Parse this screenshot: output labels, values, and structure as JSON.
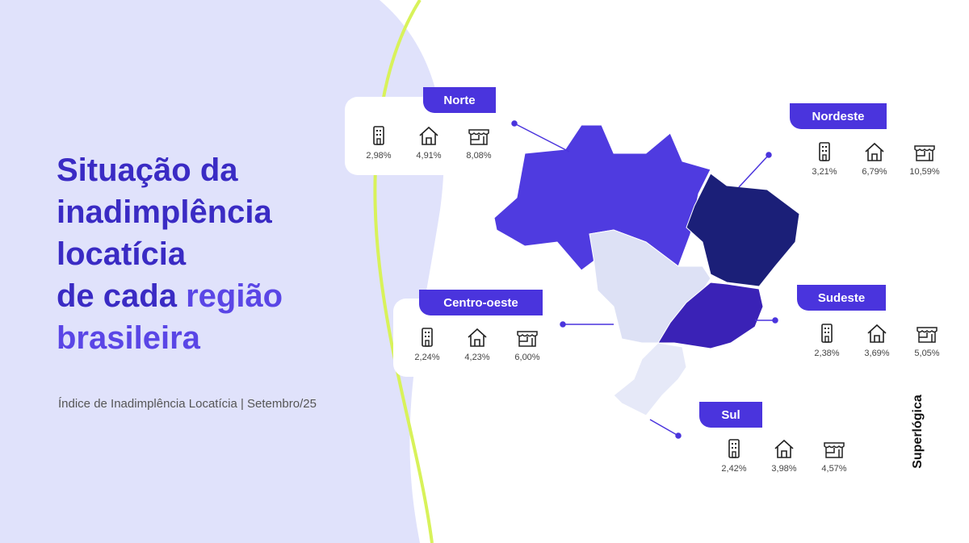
{
  "title": {
    "line1": "Situação da",
    "line2": "inadimplência",
    "line3": "locatícia",
    "line4a": "de cada ",
    "line4b": "região",
    "line5": "brasileira"
  },
  "subtitle": "Índice de Inadimplência Locatícia | Setembro/25",
  "legend_icons": [
    "building-icon",
    "house-icon",
    "store-icon"
  ],
  "regions": [
    {
      "name": "Norte",
      "values": [
        "2,98%",
        "4,91%",
        "8,08%"
      ],
      "color": "#4f3be0"
    },
    {
      "name": "Nordeste",
      "values": [
        "3,21%",
        "6,79%",
        "10,59%"
      ],
      "color": "#1b1f78"
    },
    {
      "name": "Centro-oeste",
      "values": [
        "2,24%",
        "4,23%",
        "6,00%"
      ],
      "color": "#dde1f5"
    },
    {
      "name": "Sudeste",
      "values": [
        "2,38%",
        "3,69%",
        "5,05%"
      ],
      "color": "#3a22b6"
    },
    {
      "name": "Sul",
      "values": [
        "2,42%",
        "3,98%",
        "4,57%"
      ],
      "color": "#e6e9f8"
    }
  ],
  "brand": "Superlógica",
  "colors": {
    "accent": "#4a34dd",
    "title": "#3a2bc4",
    "background": "#e0e2fb",
    "line": "#d8f25a"
  }
}
